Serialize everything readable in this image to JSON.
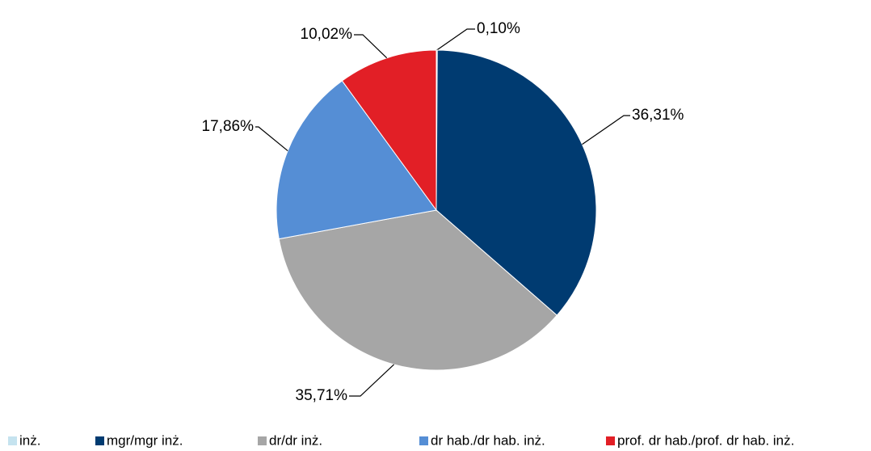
{
  "chart_data": {
    "type": "pie",
    "categories": [
      "inż.",
      "mgr/mgr inż.",
      "dr/dr inż.",
      "dr hab./dr hab. inż.",
      "prof. dr hab./prof. dr hab. inż."
    ],
    "values": [
      0.1,
      36.31,
      35.71,
      17.86,
      10.02
    ],
    "value_labels": [
      "0,10%",
      "36,31%",
      "35,71%",
      "17,86%",
      "10,02%"
    ],
    "colors": [
      "#c5e3ef",
      "#003b71",
      "#a6a6a6",
      "#558ed5",
      "#e21f26"
    ],
    "legend": "bottom"
  }
}
